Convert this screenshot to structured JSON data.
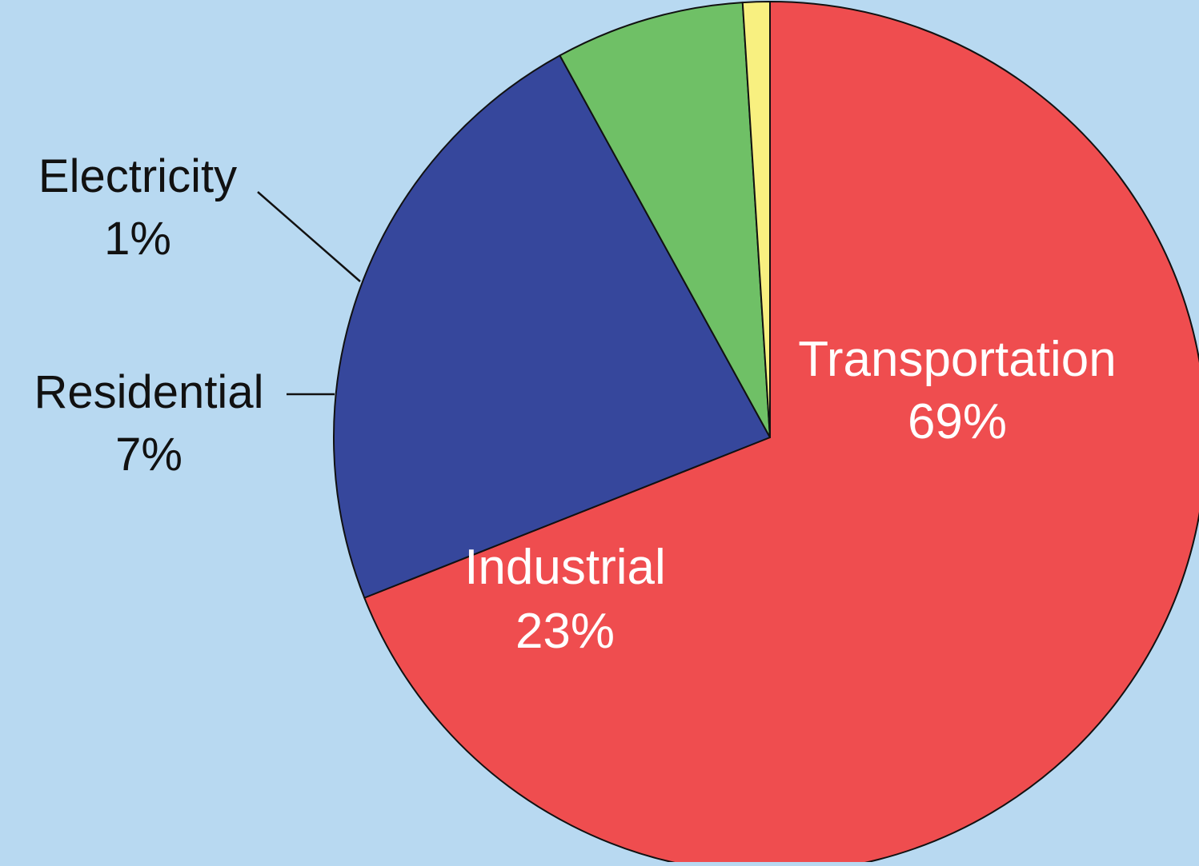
{
  "chart_data": {
    "type": "pie",
    "title": "",
    "slices": [
      {
        "label": "Transportation",
        "value": 69,
        "value_label": "69%",
        "color": "#ef4d4f",
        "text_color": "#ffffff"
      },
      {
        "label": "Industrial",
        "value": 23,
        "value_label": "23%",
        "color": "#36479c",
        "text_color": "#ffffff"
      },
      {
        "label": "Residential",
        "value": 7,
        "value_label": "7%",
        "color": "#6fc066",
        "text_color": "#111111"
      },
      {
        "label": "Electricity",
        "value": 1,
        "value_label": "1%",
        "color": "#f8f080",
        "text_color": "#111111"
      }
    ],
    "start_angle_deg": 0,
    "direction": "clockwise",
    "background_color": "#b8d9f1",
    "outline_color": "#111111"
  }
}
